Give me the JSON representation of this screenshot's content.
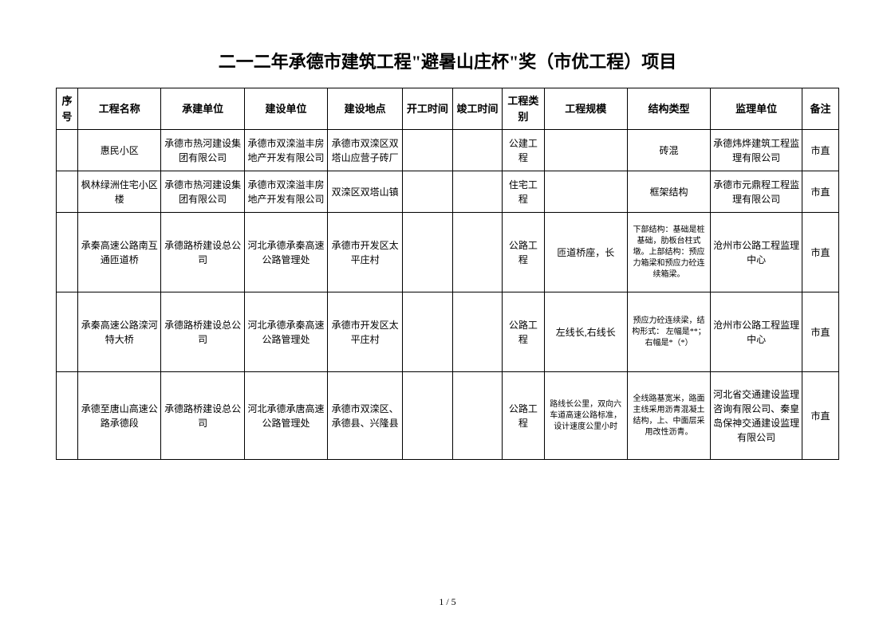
{
  "title": "二一二年承德市建筑工程\"避暑山庄杯\"奖（市优工程）项目",
  "headers": {
    "seq": "序号",
    "name": "工程名称",
    "contractor": "承建单位",
    "builder": "建设单位",
    "location": "建设地点",
    "start": "开工时间",
    "end": "竣工时间",
    "category": "工程类别",
    "scale": "工程规模",
    "structure": "结构类型",
    "supervisor": "监理单位",
    "remark": "备注"
  },
  "rows": [
    {
      "seq": "",
      "name": "惠民小区",
      "contractor": "承德市热河建设集团有限公司",
      "builder": "承德市双滦溢丰房地产开发有限公司",
      "location": "承德市双滦区双塔山应营子砖厂",
      "start": "",
      "end": "",
      "category": "公建工程",
      "scale": "",
      "structure": "砖混",
      "supervisor": "承德炜烨建筑工程监理有限公司",
      "remark": "市直"
    },
    {
      "seq": "",
      "name": "枫林绿洲住宅小区楼",
      "contractor": "承德市热河建设集团有限公司",
      "builder": "承德市双滦溢丰房地产开发有限公司",
      "location": "双滦区双塔山镇",
      "start": "",
      "end": "",
      "category": "住宅工程",
      "scale": "",
      "structure": "框架结构",
      "supervisor": "承德市元鼎程工程监理有限公司",
      "remark": "市直"
    },
    {
      "seq": "",
      "name": "承秦高速公路南互通匝道桥",
      "contractor": "承德路桥建设总公司",
      "builder": "河北承德承秦高速公路管理处",
      "location": "承德市开发区太平庄村",
      "start": "",
      "end": "",
      "category": "公路工程",
      "scale": "匝道桥座，长",
      "structure": "下部结构：基础是桩基础，肋板台柱式墩。上部结构：预应力箱梁和预应力砼连续箱梁。",
      "supervisor": "沧州市公路工程监理中心",
      "remark": "市直"
    },
    {
      "seq": "",
      "name": "承秦高速公路滦河特大桥",
      "contractor": "承德路桥建设总公司",
      "builder": "河北承德承秦高速公路管理处",
      "location": "承德市开发区太平庄村",
      "start": "",
      "end": "",
      "category": "公路工程",
      "scale": "左线长,右线长",
      "structure": "预应力砼连续梁，结构形式：  左幅是**；  右幅是*（*）",
      "supervisor": "沧州市公路工程监理中心",
      "remark": "市直"
    },
    {
      "seq": "",
      "name": "承德至唐山高速公路承德段",
      "contractor": "承德路桥建设总公司",
      "builder": "河北承德承唐高速公路管理处",
      "location": "承德市双滦区、承德县、兴隆县",
      "start": "",
      "end": "",
      "category": "公路工程",
      "scale": "路线长公里，双向六车道高速公路标准，设计速度公里小时",
      "structure": "全线路基宽米，路面主线采用沥青混凝土结构，上、中面层采用改性沥青。",
      "supervisor": "河北省交通建设监理咨询有限公司、秦皇岛保神交通建设监理有限公司",
      "remark": "市直"
    }
  ],
  "pageNumber": "1 / 5"
}
